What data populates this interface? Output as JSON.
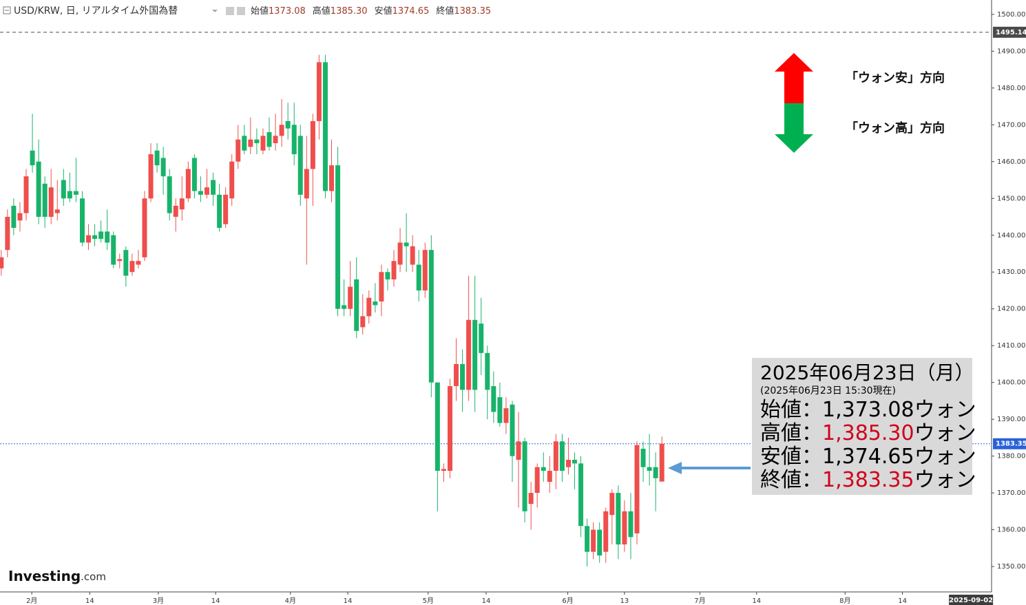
{
  "chart_data": {
    "type": "candlestick",
    "title": "USD/KRW, 日, リアルタイム外国為替",
    "header_values": [
      {
        "label": "始値",
        "value": "1373.08"
      },
      {
        "label": "高値",
        "value": "1385.30"
      },
      {
        "label": "安値",
        "value": "1374.65"
      },
      {
        "label": "終値",
        "value": "1383.35"
      }
    ],
    "up_color": "#ee4f4c",
    "down_color": "#18b36a",
    "open": [
      1431,
      1436,
      1448,
      1444,
      1446,
      1463,
      1460,
      1454,
      1445,
      1446,
      1455,
      1452,
      1452,
      1450,
      1438,
      1440,
      1441,
      1441,
      1440,
      1433,
      1436,
      1430,
      1432,
      1434,
      1450,
      1463,
      1461,
      1456,
      1445,
      1447,
      1450,
      1461,
      1452,
      1451,
      1455,
      1451,
      1443,
      1450,
      1460,
      1467,
      1464,
      1466,
      1463,
      1468,
      1465,
      1467,
      1471,
      1470,
      1467,
      1450,
      1458,
      1471,
      1487,
      1452,
      1459,
      1421,
      1420,
      1428,
      1415,
      1418,
      1422,
      1422,
      1430,
      1428,
      1432,
      1438,
      1432,
      1432,
      1425,
      1436,
      1400,
      1376,
      1376,
      1399,
      1405,
      1398,
      1417,
      1416,
      1408,
      1399,
      1396,
      1389,
      1394,
      1379,
      1384,
      1367,
      1370,
      1377,
      1373,
      1376,
      1384,
      1377,
      1379,
      1378,
      1361,
      1354,
      1360,
      1354,
      1364,
      1370,
      1356,
      1365,
      1359,
      1382,
      1377,
      1377,
      1373.08
    ],
    "high": [
      1436,
      1447,
      1450,
      1449,
      1458,
      1473,
      1466,
      1456,
      1458,
      1455,
      1458,
      1457,
      1461,
      1452,
      1443,
      1443,
      1444,
      1447,
      1441,
      1435,
      1437,
      1435,
      1436,
      1452,
      1465,
      1465,
      1464,
      1458,
      1450,
      1456,
      1460,
      1462,
      1456,
      1458,
      1457,
      1454,
      1453,
      1462,
      1470,
      1470,
      1472,
      1469,
      1469,
      1472,
      1473,
      1477,
      1476,
      1476,
      1470,
      1467,
      1473,
      1489,
      1489,
      1466,
      1464,
      1428,
      1433,
      1434,
      1424,
      1425,
      1427,
      1432,
      1431,
      1436,
      1442,
      1446,
      1440,
      1436,
      1438,
      1440,
      1400,
      1378,
      1401,
      1412,
      1409,
      1429,
      1429,
      1423,
      1410,
      1403,
      1400,
      1396,
      1395,
      1392,
      1385,
      1373,
      1378,
      1381,
      1380,
      1386,
      1386,
      1385,
      1381,
      1380,
      1363,
      1362,
      1362,
      1366,
      1371,
      1372,
      1368,
      1370,
      1384,
      1384,
      1386,
      1381,
      1385.3
    ],
    "low": [
      1429,
      1434,
      1440,
      1441,
      1444,
      1457,
      1443,
      1442,
      1443,
      1444,
      1448,
      1449,
      1449,
      1437,
      1436,
      1437,
      1438,
      1436,
      1431,
      1431,
      1426,
      1429,
      1431,
      1433,
      1449,
      1457,
      1451,
      1444,
      1441,
      1444,
      1449,
      1450,
      1449,
      1450,
      1448,
      1441,
      1442,
      1448,
      1458,
      1462,
      1462,
      1462,
      1462,
      1463,
      1463,
      1464,
      1466,
      1459,
      1448,
      1432,
      1448,
      1466,
      1450,
      1449,
      1418,
      1418,
      1418,
      1412,
      1413,
      1416,
      1419,
      1418,
      1425,
      1426,
      1430,
      1430,
      1430,
      1422,
      1423,
      1396,
      1365,
      1373,
      1374,
      1395,
      1392,
      1395,
      1392,
      1402,
      1390,
      1389,
      1388,
      1386,
      1373,
      1366,
      1362,
      1360,
      1366,
      1373,
      1370,
      1371,
      1373,
      1375,
      1371,
      1358,
      1350,
      1352,
      1351,
      1351,
      1356,
      1352,
      1354,
      1352,
      1356,
      1373,
      1372,
      1365,
      1374.65
    ],
    "close": [
      1434,
      1445,
      1442,
      1446,
      1456,
      1459,
      1445,
      1445,
      1453,
      1447,
      1450,
      1450,
      1451,
      1438,
      1440,
      1439,
      1439,
      1438,
      1432,
      1433.5,
      1429,
      1433,
      1433,
      1450,
      1462,
      1459,
      1456,
      1446,
      1448,
      1450,
      1458,
      1452,
      1451,
      1453,
      1451,
      1442,
      1451,
      1460,
      1466,
      1463,
      1466,
      1465,
      1467,
      1464,
      1467,
      1470,
      1469,
      1462,
      1451,
      1458,
      1471,
      1487,
      1452,
      1459,
      1420,
      1420,
      1426,
      1414,
      1418,
      1423,
      1421,
      1430,
      1428,
      1433,
      1438,
      1437,
      1437,
      1425,
      1436,
      1400,
      1376,
      1376.5,
      1399,
      1405,
      1398,
      1417,
      1398,
      1408,
      1398,
      1392,
      1389,
      1393,
      1380,
      1384,
      1365,
      1370,
      1377,
      1376,
      1376,
      1384,
      1376,
      1379,
      1378,
      1361,
      1354,
      1360,
      1353,
      1365,
      1370,
      1356,
      1365,
      1358,
      1383,
      1377,
      1376,
      1374,
      1383.35
    ],
    "xlim": [
      -0.2,
      158.9
    ],
    "xticks": [
      {
        "value": 4.9,
        "label": "2月"
      },
      {
        "value": 14.2,
        "label": "14"
      },
      {
        "value": 25.2,
        "label": "3月"
      },
      {
        "value": 34.4,
        "label": "14"
      },
      {
        "value": 46.4,
        "label": "4月"
      },
      {
        "value": 55.6,
        "label": "14"
      },
      {
        "value": 68.5,
        "label": "5月"
      },
      {
        "value": 77.8,
        "label": "14"
      },
      {
        "value": 90.9,
        "label": "6月"
      },
      {
        "value": 100,
        "label": "13"
      },
      {
        "value": 112.1,
        "label": "7月"
      },
      {
        "value": 121.2,
        "label": "14"
      },
      {
        "value": 135.4,
        "label": "8月"
      },
      {
        "value": 144.6,
        "label": "14"
      }
    ],
    "current_date": {
      "value": 155.6,
      "label": "2025-09-02"
    },
    "ylim": [
      1343.1,
      1503.9
    ],
    "yticks": [
      {
        "value": 1350,
        "label": "1350.00"
      },
      {
        "value": 1360,
        "label": "1360.00"
      },
      {
        "value": 1370,
        "label": "1370.00"
      },
      {
        "value": 1380,
        "label": "1380.00"
      },
      {
        "value": 1390,
        "label": "1390.00"
      },
      {
        "value": 1400,
        "label": "1400.00"
      },
      {
        "value": 1410,
        "label": "1410.00"
      },
      {
        "value": 1420,
        "label": "1420.00"
      },
      {
        "value": 1430,
        "label": "1430.00"
      },
      {
        "value": 1440,
        "label": "1440.00"
      },
      {
        "value": 1450,
        "label": "1450.00"
      },
      {
        "value": 1460,
        "label": "1460.00"
      },
      {
        "value": 1470,
        "label": "1470.00"
      },
      {
        "value": 1480,
        "label": "1480.00"
      },
      {
        "value": 1490,
        "label": "1490.00"
      },
      {
        "value": 1500,
        "label": "1500.00"
      }
    ],
    "price_lines": [
      {
        "value": 1495.14,
        "color": "#4a4a4a"
      },
      {
        "value": 1383.35,
        "color": "#2962d9"
      }
    ],
    "annotations": {
      "up": "「ウォン安」方向",
      "down": "「ウォン高」方向"
    },
    "info_box": {
      "date": "2025年06月23日（月）",
      "as_of": "(2025年06月23日 15:30現在)",
      "separator": "：",
      "unit": "ウォン",
      "highlight_color": "#d0021b",
      "rows": [
        {
          "label": "始値",
          "value": "1,373.08",
          "highlight": false
        },
        {
          "label": "高値",
          "value": "1,385.30",
          "highlight": true
        },
        {
          "label": "安値",
          "value": "1,374.65",
          "highlight": false
        },
        {
          "label": "終値",
          "value": "1,383.35",
          "highlight": true
        }
      ]
    },
    "logo": {
      "name": "Investing",
      "suffix": ".com"
    }
  }
}
